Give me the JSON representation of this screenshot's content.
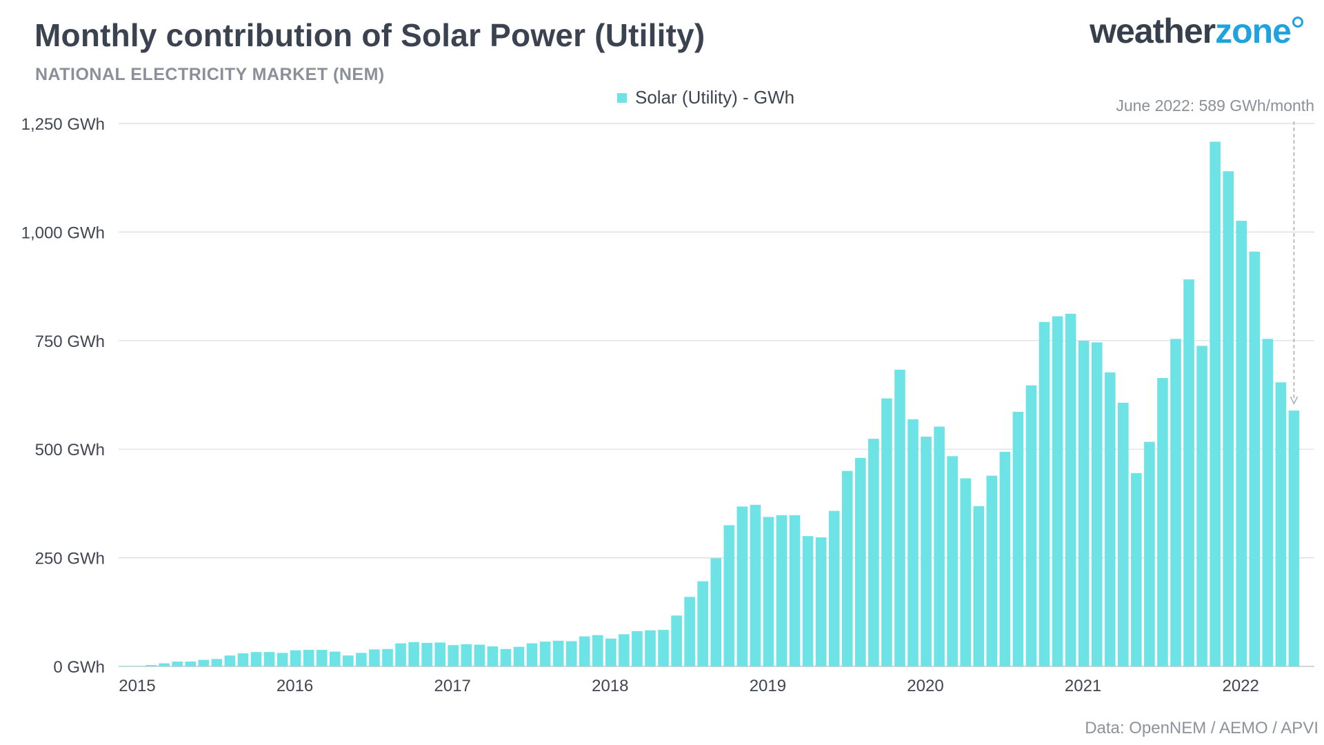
{
  "title": "Monthly contribution of Solar Power (Utility)",
  "subtitle": "NATIONAL ELECTRICITY MARKET (NEM)",
  "logo": {
    "part1": "weather",
    "part2": "zone"
  },
  "legend_label": "Solar (Utility) - GWh",
  "source": "Data: OpenNEM / AEMO /  APVI",
  "annotation": "June 2022: 589 GWh/month",
  "colors": {
    "bar": "#6ee3e6",
    "title": "#3b4250",
    "grid": "#d9dcdf",
    "accent": "#1fa3e0"
  },
  "chart_data": {
    "type": "bar",
    "title": "Monthly contribution of Solar Power (Utility)",
    "subtitle": "NATIONAL ELECTRICITY MARKET (NEM)",
    "ylabel": "",
    "xlabel": "",
    "ylim": [
      0,
      1250
    ],
    "yticks": [
      0,
      250,
      500,
      750,
      1000,
      1250
    ],
    "ytick_labels": [
      "0 GWh",
      "250 GWh",
      "500 GWh",
      "750 GWh",
      "1,000 GWh",
      "1,250 GWh"
    ],
    "xtick_labels": [
      "2015",
      "2016",
      "2017",
      "2018",
      "2019",
      "2020",
      "2021",
      "2022"
    ],
    "start_month": "2015-01",
    "series": [
      {
        "name": "Solar (Utility) - GWh",
        "values": [
          1,
          1,
          3,
          7,
          11,
          11,
          15,
          17,
          25,
          30,
          33,
          33,
          31,
          37,
          38,
          38,
          34,
          25,
          31,
          39,
          40,
          53,
          56,
          54,
          55,
          49,
          51,
          50,
          46,
          40,
          45,
          53,
          57,
          59,
          58,
          69,
          72,
          64,
          74,
          81,
          83,
          84,
          117,
          160,
          196,
          249,
          325,
          368,
          372,
          344,
          348,
          348,
          300,
          297,
          358,
          450,
          480,
          524,
          617,
          683,
          569,
          529,
          552,
          484,
          433,
          369,
          439,
          494,
          586,
          647,
          793,
          806,
          812,
          750,
          746,
          677,
          607,
          445,
          517,
          664,
          754,
          891,
          738,
          1208,
          1140,
          1026,
          955,
          754,
          654,
          589
        ]
      }
    ],
    "annotation": "June 2022: 589 GWh/month",
    "grid": true,
    "legend_position": "top-center"
  }
}
